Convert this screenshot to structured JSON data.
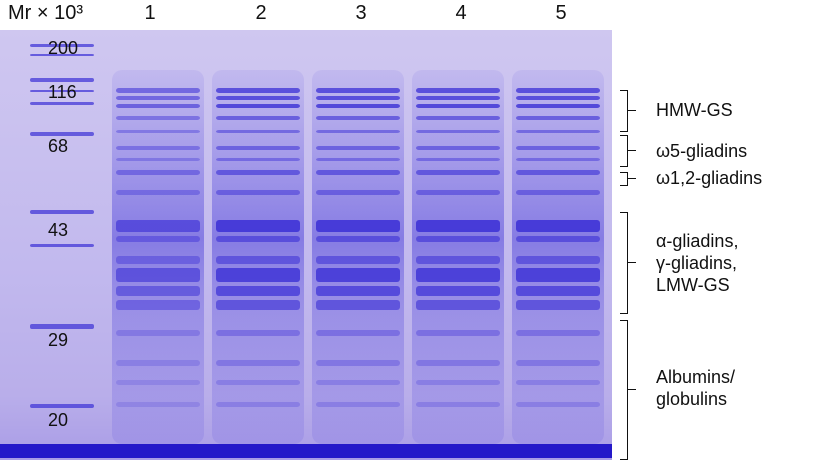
{
  "header": {
    "marker_label": "Mr × 10³",
    "lanes": [
      "1",
      "2",
      "3",
      "4",
      "5"
    ]
  },
  "markers": [
    "200",
    "116",
    "68",
    "43",
    "29",
    "20"
  ],
  "fractions": [
    "HMW-GS",
    "ω5-gliadins",
    "ω1,2-gliadins",
    "α-gliadins,",
    "γ-gliadins,",
    "LMW-GS",
    "Albumins/",
    "globulins"
  ],
  "colors": {
    "stain": "#3b2fd6",
    "background": "#c6bdf0"
  }
}
